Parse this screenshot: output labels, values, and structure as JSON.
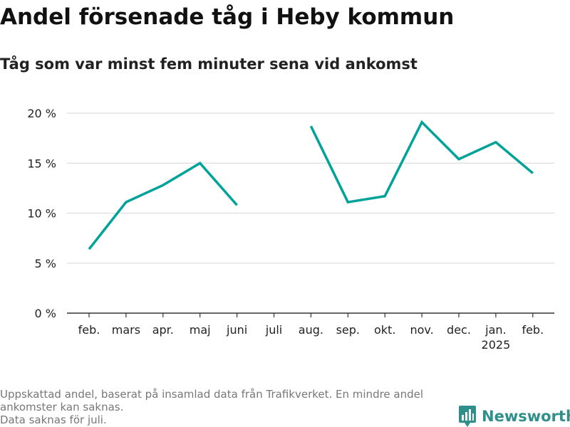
{
  "header": {
    "title": "Andel försenade tåg i Heby kommun",
    "subtitle": "Tåg som var minst fem minuter sena vid ankomst"
  },
  "chart_data": {
    "type": "line",
    "title": "Andel försenade tåg i Heby kommun",
    "subtitle": "Tåg som var minst fem minuter sena vid ankomst",
    "xlabel": "",
    "ylabel": "",
    "categories": [
      "feb.",
      "mars",
      "apr.",
      "maj",
      "juni",
      "juli",
      "aug.",
      "sep.",
      "okt.",
      "nov.",
      "dec.",
      "jan.",
      "feb."
    ],
    "category_sublabels": [
      "",
      "",
      "",
      "",
      "",
      "",
      "",
      "",
      "",
      "",
      "",
      "2025",
      ""
    ],
    "series": [
      {
        "values": [
          6.4,
          11.1,
          12.8,
          15.0,
          10.8,
          null,
          18.7,
          11.1,
          11.7,
          19.1,
          15.4,
          17.1,
          14.0
        ],
        "color": "#00a29a"
      }
    ],
    "y_ticks": [
      0,
      5,
      10,
      15,
      20
    ],
    "y_tick_labels": [
      "0 %",
      "5 %",
      "10 %",
      "15 %",
      "20 %"
    ],
    "ylim": [
      0,
      20
    ],
    "grid": true,
    "legend": "none",
    "colors": {
      "line": "#00a29a",
      "grid": "#dddddd",
      "axis": "#333333",
      "label": "#222222"
    }
  },
  "footnote": {
    "lines": [
      "Uppskattad andel, baserat på insamlad data från Trafikverket. En mindre andel ankomster kan saknas.",
      "Data saknas för juli."
    ]
  },
  "brand": {
    "name": "Newsworthy",
    "icon": "newsworthy-logo-icon",
    "color": "#2f8f8a"
  }
}
